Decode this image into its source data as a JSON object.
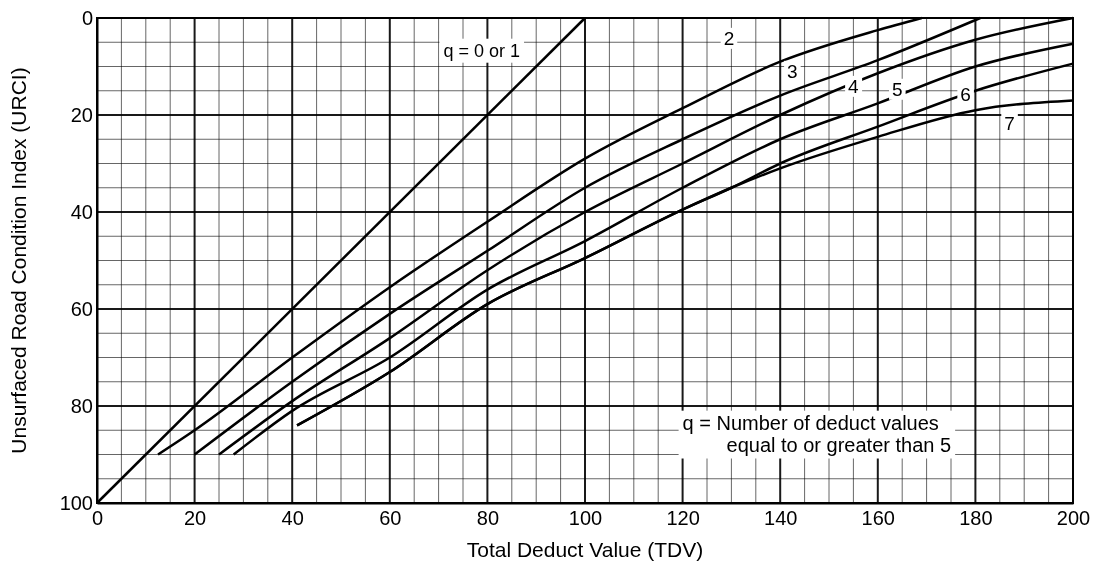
{
  "chart_data": {
    "type": "line",
    "xlabel": "Total Deduct Value (TDV)",
    "ylabel": "Unsurfaced Road Condition Index (URCI)",
    "xlim": [
      0,
      200
    ],
    "ylim": [
      100,
      0
    ],
    "grid": true,
    "marker": "none",
    "line_style": "solid",
    "xticks": [
      0,
      {
        "value": 5,
        "label": null
      },
      {
        "value": 10,
        "label": null
      },
      {
        "value": 15,
        "label": null
      },
      20,
      {
        "value": 25,
        "label": null
      },
      {
        "value": 30,
        "label": null
      },
      {
        "value": 35,
        "label": null
      },
      40,
      {
        "value": 45,
        "label": null
      },
      {
        "value": 50,
        "label": null
      },
      {
        "value": 55,
        "label": null
      },
      60,
      {
        "value": 65,
        "label": null
      },
      {
        "value": 70,
        "label": null
      },
      {
        "value": 75,
        "label": null
      },
      80,
      {
        "value": 85,
        "label": null
      },
      {
        "value": 90,
        "label": null
      },
      {
        "value": 95,
        "label": null
      },
      100,
      {
        "value": 105,
        "label": null
      },
      {
        "value": 110,
        "label": null
      },
      {
        "value": 115,
        "label": null
      },
      120,
      {
        "value": 125,
        "label": null
      },
      {
        "value": 130,
        "label": null
      },
      {
        "value": 135,
        "label": null
      },
      140,
      {
        "value": 145,
        "label": null
      },
      {
        "value": 150,
        "label": null
      },
      {
        "value": 155,
        "label": null
      },
      160,
      {
        "value": 165,
        "label": null
      },
      {
        "value": 170,
        "label": null
      },
      {
        "value": 175,
        "label": null
      },
      180,
      {
        "value": 185,
        "label": null
      },
      {
        "value": 190,
        "label": null
      },
      {
        "value": 195,
        "label": null
      },
      200
    ],
    "yticks": [
      0,
      {
        "value": 5,
        "label": null
      },
      {
        "value": 10,
        "label": null
      },
      {
        "value": 15,
        "label": null
      },
      20,
      {
        "value": 25,
        "label": null
      },
      {
        "value": 30,
        "label": null
      },
      {
        "value": 35,
        "label": null
      },
      40,
      {
        "value": 45,
        "label": null
      },
      {
        "value": 50,
        "label": null
      },
      {
        "value": 55,
        "label": null
      },
      60,
      {
        "value": 65,
        "label": null
      },
      {
        "value": 70,
        "label": null
      },
      {
        "value": 75,
        "label": null
      },
      80,
      {
        "value": 85,
        "label": null
      },
      {
        "value": 90,
        "label": null
      },
      {
        "value": 95,
        "label": null
      },
      100
    ],
    "series": [
      {
        "color": "#000000",
        "x": [
          0,
          100
        ],
        "values": [
          100,
          0
        ]
      },
      {
        "color": "#000000",
        "x": [
          12.5,
          20,
          40,
          60,
          80,
          100,
          120,
          140,
          160,
          169
        ],
        "values": [
          90,
          85,
          70,
          55.5,
          42,
          29,
          18.6,
          9,
          2.5,
          0
        ]
      },
      {
        "color": "#000000",
        "x": [
          20,
          40,
          60,
          80,
          100,
          120,
          140,
          160,
          181
        ],
        "values": [
          90,
          75,
          61,
          48,
          35,
          25,
          16,
          8.7,
          0
        ]
      },
      {
        "color": "#000000",
        "x": [
          25,
          40,
          60,
          80,
          100,
          120,
          140,
          160,
          180,
          200
        ],
        "values": [
          90,
          79,
          66,
          52,
          40,
          30,
          20,
          11.4,
          4.5,
          0
        ]
      },
      {
        "color": "#000000",
        "x": [
          28,
          40,
          60,
          80,
          100,
          120,
          140,
          160,
          180,
          200
        ],
        "values": [
          90,
          81,
          70,
          56,
          46,
          35,
          25,
          17.6,
          10,
          5.3
        ]
      },
      {
        "color": "#000000",
        "x": [
          41,
          60,
          80,
          100,
          120,
          130,
          140,
          160,
          180,
          200
        ],
        "values": [
          84,
          73,
          59,
          49.5,
          39.5,
          35,
          30,
          22.4,
          15,
          9.4
        ]
      },
      {
        "color": "#000000",
        "x": [
          41,
          60,
          80,
          100,
          120,
          130,
          140,
          160,
          180,
          200
        ],
        "values": [
          84,
          73,
          59,
          49.5,
          39.5,
          35,
          31,
          24.5,
          19,
          17
        ]
      }
    ],
    "annotations": [
      "q = 0 or 1",
      {
        "text": "2",
        "x": 129.5,
        "y": 4.5
      },
      {
        "text": "3",
        "x": 142.5,
        "y": 11.3
      },
      {
        "text": "4",
        "x": 155,
        "y": 14.4
      },
      {
        "text": "5",
        "x": 164,
        "y": 15
      },
      {
        "text": "6",
        "x": 178,
        "y": 16
      },
      {
        "text": "7",
        "x": 187,
        "y": 22
      },
      "q = Number of deduct  values\nequal to or greater than 5"
    ]
  }
}
